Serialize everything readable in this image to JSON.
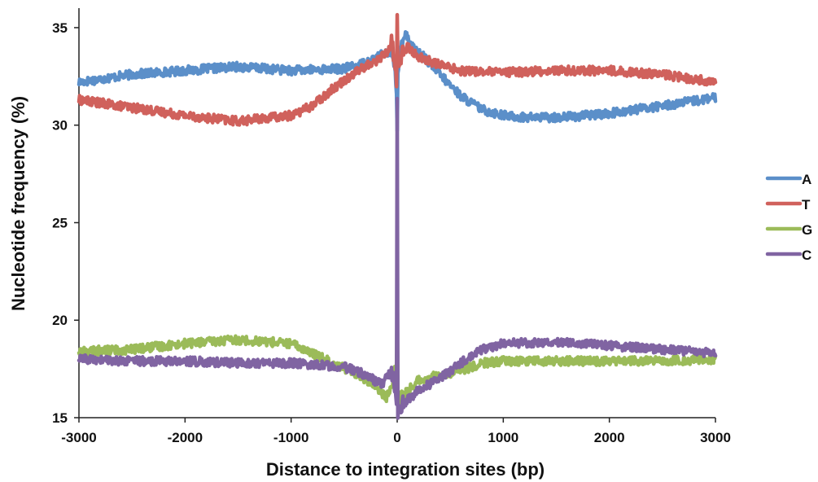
{
  "chart_data": {
    "type": "line",
    "title": "",
    "xlabel": "Distance to integration sites (bp)",
    "ylabel": "Nucleotide frequency (%)",
    "xlim": [
      -3000,
      3000
    ],
    "ylim": [
      15,
      36
    ],
    "xticks": [
      -3000,
      -2000,
      -1000,
      0,
      1000,
      2000,
      3000
    ],
    "yticks": [
      15,
      20,
      25,
      30,
      35
    ],
    "grid": false,
    "legend": "right",
    "series": [
      {
        "name": "A",
        "color": "#5b8fc9",
        "points": [
          [
            -3000,
            32.2
          ],
          [
            -2500,
            32.6
          ],
          [
            -2000,
            32.8
          ],
          [
            -1500,
            33.0
          ],
          [
            -1000,
            32.8
          ],
          [
            -500,
            32.9
          ],
          [
            -300,
            33.2
          ],
          [
            -150,
            33.6
          ],
          [
            -50,
            33.8
          ],
          [
            -20,
            32.5
          ],
          [
            -5,
            31.5
          ],
          [
            0,
            29.5
          ],
          [
            5,
            32.5
          ],
          [
            30,
            34.2
          ],
          [
            80,
            34.7
          ],
          [
            150,
            34.0
          ],
          [
            250,
            33.5
          ],
          [
            400,
            32.6
          ],
          [
            600,
            31.5
          ],
          [
            800,
            30.8
          ],
          [
            1000,
            30.5
          ],
          [
            1200,
            30.4
          ],
          [
            1500,
            30.4
          ],
          [
            1800,
            30.5
          ],
          [
            2000,
            30.6
          ],
          [
            2500,
            31.0
          ],
          [
            3000,
            31.4
          ]
        ]
      },
      {
        "name": "T",
        "color": "#d0615c",
        "points": [
          [
            -3000,
            31.3
          ],
          [
            -2500,
            30.9
          ],
          [
            -2000,
            30.5
          ],
          [
            -1500,
            30.2
          ],
          [
            -1000,
            30.5
          ],
          [
            -800,
            31.0
          ],
          [
            -600,
            31.9
          ],
          [
            -400,
            32.7
          ],
          [
            -200,
            33.3
          ],
          [
            -100,
            33.7
          ],
          [
            -50,
            34.3
          ],
          [
            -20,
            33.0
          ],
          [
            -5,
            32.0
          ],
          [
            0,
            36.0
          ],
          [
            5,
            33.0
          ],
          [
            30,
            33.5
          ],
          [
            100,
            34.0
          ],
          [
            200,
            33.5
          ],
          [
            400,
            33.1
          ],
          [
            600,
            32.8
          ],
          [
            1000,
            32.7
          ],
          [
            1500,
            32.8
          ],
          [
            2000,
            32.8
          ],
          [
            2500,
            32.6
          ],
          [
            3000,
            32.2
          ]
        ]
      },
      {
        "name": "G",
        "color": "#9bbb59",
        "points": [
          [
            -3000,
            18.4
          ],
          [
            -2500,
            18.5
          ],
          [
            -2000,
            18.8
          ],
          [
            -1500,
            19.0
          ],
          [
            -1000,
            18.8
          ],
          [
            -800,
            18.3
          ],
          [
            -600,
            17.8
          ],
          [
            -400,
            17.3
          ],
          [
            -200,
            16.6
          ],
          [
            -100,
            16.0
          ],
          [
            -50,
            16.8
          ],
          [
            -20,
            17.5
          ],
          [
            -5,
            18.0
          ],
          [
            0,
            20.5
          ],
          [
            5,
            16.0
          ],
          [
            30,
            15.9
          ],
          [
            100,
            16.4
          ],
          [
            200,
            16.9
          ],
          [
            400,
            17.2
          ],
          [
            600,
            17.4
          ],
          [
            800,
            17.8
          ],
          [
            1000,
            17.9
          ],
          [
            1500,
            17.9
          ],
          [
            2000,
            17.9
          ],
          [
            2500,
            17.9
          ],
          [
            3000,
            18.0
          ]
        ]
      },
      {
        "name": "C",
        "color": "#8064a2",
        "points": [
          [
            -3000,
            18.0
          ],
          [
            -2500,
            17.9
          ],
          [
            -2000,
            17.9
          ],
          [
            -1500,
            17.8
          ],
          [
            -1000,
            17.8
          ],
          [
            -700,
            17.7
          ],
          [
            -500,
            17.6
          ],
          [
            -300,
            17.2
          ],
          [
            -150,
            16.7
          ],
          [
            -50,
            17.4
          ],
          [
            -20,
            16.5
          ],
          [
            -5,
            16.0
          ],
          [
            0,
            31.0
          ],
          [
            5,
            15.2
          ],
          [
            30,
            15.6
          ],
          [
            80,
            15.8
          ],
          [
            200,
            16.4
          ],
          [
            400,
            17.0
          ],
          [
            600,
            17.8
          ],
          [
            800,
            18.5
          ],
          [
            1000,
            18.8
          ],
          [
            1500,
            18.9
          ],
          [
            2000,
            18.7
          ],
          [
            2500,
            18.5
          ],
          [
            3000,
            18.3
          ]
        ]
      }
    ]
  }
}
